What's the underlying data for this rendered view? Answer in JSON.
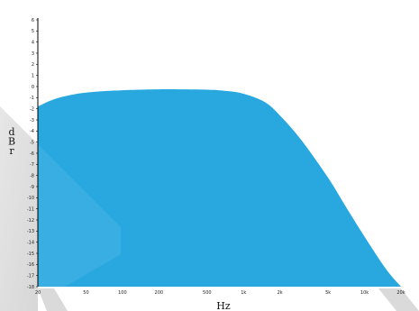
{
  "chart_data": {
    "type": "area",
    "xlabel": "Hz",
    "ylabel": "dBr",
    "x_scale": "log",
    "xlim": [
      20,
      20000
    ],
    "ylim": [
      -18,
      6
    ],
    "x_ticks": [
      {
        "value": 20,
        "label": "20"
      },
      {
        "value": 50,
        "label": "50"
      },
      {
        "value": 100,
        "label": "100"
      },
      {
        "value": 200,
        "label": "200"
      },
      {
        "value": 500,
        "label": "500"
      },
      {
        "value": 1000,
        "label": "1k"
      },
      {
        "value": 2000,
        "label": "2k"
      },
      {
        "value": 5000,
        "label": "5k"
      },
      {
        "value": 10000,
        "label": "10k"
      },
      {
        "value": 20000,
        "label": "20k"
      }
    ],
    "y_ticks": [
      6,
      5,
      4,
      3,
      2,
      1,
      0,
      -1,
      -2,
      -3,
      -4,
      -5,
      -6,
      -7,
      -8,
      -9,
      -10,
      -11,
      -12,
      -13,
      -14,
      -15,
      -16,
      -17,
      -18
    ],
    "grid": false,
    "fill_color": "#29a8e0",
    "series": [
      {
        "x": [
          20,
          25,
          30,
          40,
          50,
          70,
          100,
          150,
          200,
          300,
          500,
          700,
          1000,
          1500,
          2000,
          3000,
          5000,
          7000,
          10000,
          15000,
          20000
        ],
        "y": [
          -1.8,
          -1.3,
          -1.0,
          -0.7,
          -0.55,
          -0.42,
          -0.33,
          -0.27,
          -0.25,
          -0.25,
          -0.28,
          -0.38,
          -0.65,
          -1.4,
          -2.6,
          -4.8,
          -8.2,
          -10.8,
          -13.5,
          -16.4,
          -18.0
        ]
      }
    ]
  }
}
